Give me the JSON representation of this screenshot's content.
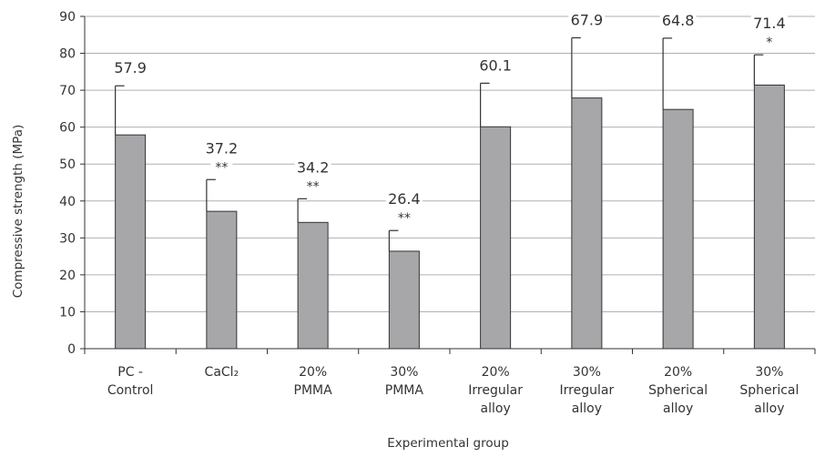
{
  "chart_data": {
    "type": "bar",
    "categories": [
      [
        "PC -",
        "Control"
      ],
      [
        "CaCl₂"
      ],
      [
        "20%",
        "PMMA"
      ],
      [
        "30%",
        "PMMA"
      ],
      [
        "20%",
        "Irregular",
        "alloy"
      ],
      [
        "30%",
        "Irregular",
        "alloy"
      ],
      [
        "20%",
        "Spherical",
        "alloy"
      ],
      [
        "30%",
        "Spherical",
        "alloy"
      ]
    ],
    "values": [
      57.9,
      37.2,
      34.2,
      26.4,
      60.1,
      67.9,
      64.8,
      71.4
    ],
    "error_upper": [
      13.3,
      8.6,
      6.4,
      5.6,
      11.8,
      16.3,
      19.3,
      8.2
    ],
    "value_labels": [
      "57.9",
      "37.2",
      "34.2",
      "26.4",
      "60.1",
      "67.9",
      "64.8",
      "71.4"
    ],
    "significance": [
      "",
      "**",
      "**",
      "**",
      "",
      "",
      "",
      "*"
    ],
    "xlabel": "Experimental group",
    "ylabel": "Compressive strength (MPa)",
    "ylim": [
      0,
      90
    ],
    "yticks": [
      0,
      10,
      20,
      30,
      40,
      50,
      60,
      70,
      80,
      90
    ],
    "grid": true,
    "bar_color": "#a7a7aa",
    "bar_edge_color": "#333333",
    "grid_color": "#b0b0b0"
  }
}
